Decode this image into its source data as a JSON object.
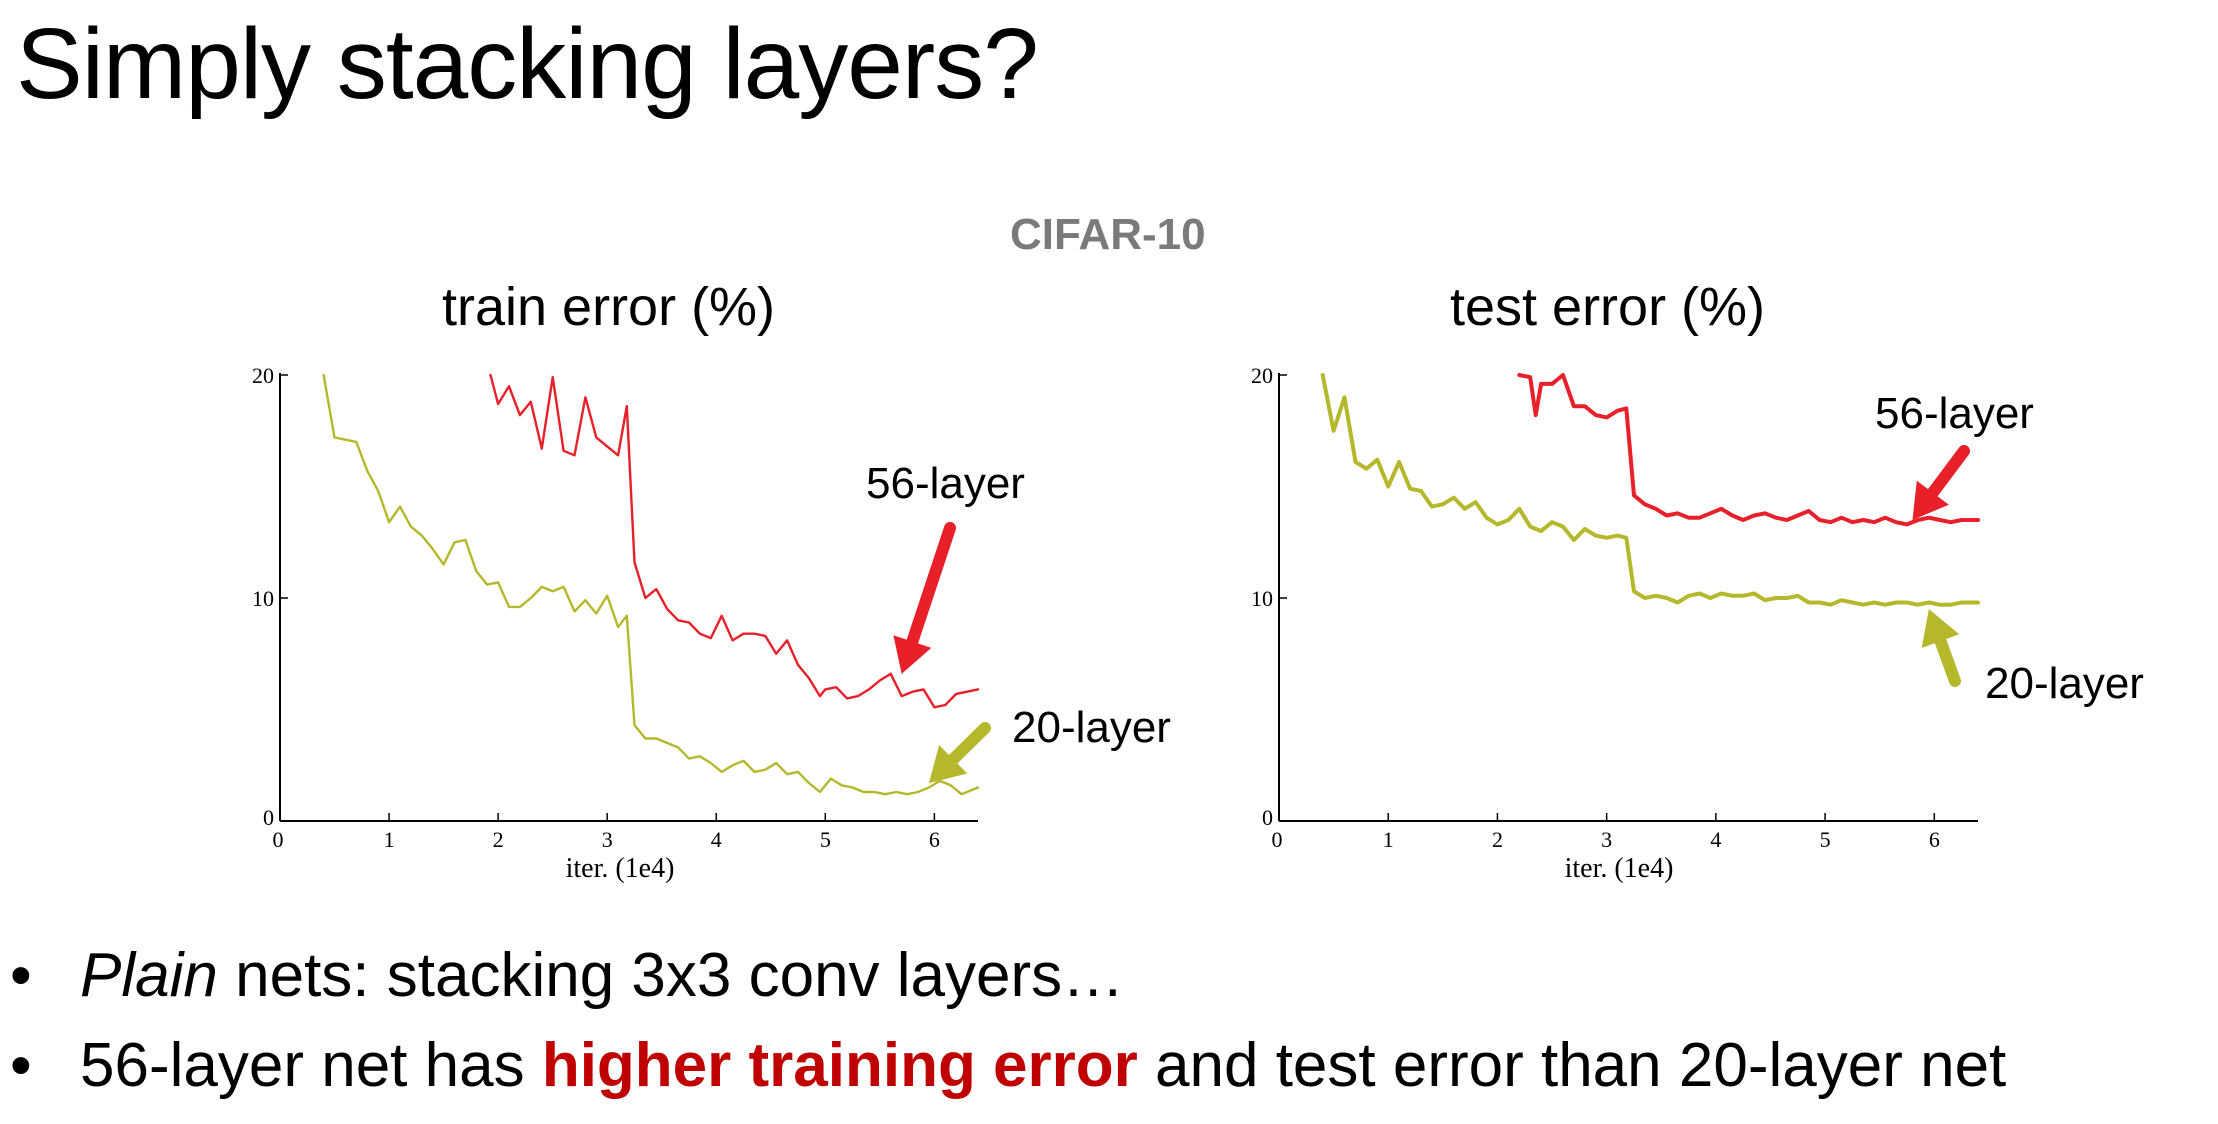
{
  "slide": {
    "title": "Simply stacking layers?",
    "dataset_label": "CIFAR-10",
    "bullet1": {
      "em": "Plain",
      "rest": " nets: stacking 3x3 conv layers…"
    },
    "bullet2": {
      "pre": "56-layer net has ",
      "highlight": "higher training error",
      "post": " and test error than 20-layer net"
    },
    "bullet_symbol": "•",
    "highlight_color": "#c00000"
  },
  "chart_data": [
    {
      "type": "line",
      "title": "train error (%)",
      "xlabel": "iter. (1e4)",
      "ylabel": "",
      "xlim": [
        0,
        6.4
      ],
      "ylim": [
        0,
        20
      ],
      "xticks": [
        "0",
        "1",
        "2",
        "3",
        "4",
        "5",
        "6"
      ],
      "yticks": [
        "0",
        "10",
        "20"
      ],
      "grid": false,
      "series": [
        {
          "name": "56-layer",
          "color": "#e8202a",
          "x": [
            1.93,
            2.0,
            2.1,
            2.2,
            2.3,
            2.4,
            2.5,
            2.6,
            2.7,
            2.8,
            2.9,
            3.0,
            3.1,
            3.18,
            3.25,
            3.35,
            3.45,
            3.55,
            3.65,
            3.75,
            3.85,
            3.95,
            4.05,
            4.15,
            4.25,
            4.35,
            4.45,
            4.55,
            4.65,
            4.75,
            4.85,
            4.95,
            5.0,
            5.1,
            5.2,
            5.3,
            5.4,
            5.5,
            5.6,
            5.7,
            5.8,
            5.9,
            6.0,
            6.1,
            6.2,
            6.3,
            6.4
          ],
          "y": [
            20,
            18.7,
            19.5,
            18.2,
            18.8,
            16.7,
            19.9,
            16.6,
            16.4,
            19.0,
            17.2,
            16.8,
            16.4,
            18.6,
            11.6,
            10.0,
            10.4,
            9.5,
            9.0,
            8.9,
            8.4,
            8.2,
            9.2,
            8.1,
            8.4,
            8.4,
            8.3,
            7.5,
            8.1,
            7.0,
            6.4,
            5.6,
            5.9,
            6.0,
            5.5,
            5.6,
            5.9,
            6.3,
            6.6,
            5.6,
            5.8,
            5.9,
            5.1,
            5.2,
            5.7,
            5.8,
            5.9
          ]
        },
        {
          "name": "20-layer",
          "color": "#b5b82a",
          "x": [
            0.4,
            0.5,
            0.7,
            0.8,
            0.9,
            1.0,
            1.1,
            1.2,
            1.3,
            1.4,
            1.5,
            1.6,
            1.7,
            1.8,
            1.9,
            2.0,
            2.1,
            2.2,
            2.3,
            2.4,
            2.5,
            2.6,
            2.7,
            2.8,
            2.9,
            3.0,
            3.1,
            3.18,
            3.25,
            3.35,
            3.45,
            3.55,
            3.65,
            3.75,
            3.85,
            3.95,
            4.05,
            4.15,
            4.25,
            4.35,
            4.45,
            4.55,
            4.65,
            4.75,
            4.85,
            4.95,
            5.05,
            5.15,
            5.25,
            5.35,
            5.45,
            5.55,
            5.65,
            5.75,
            5.85,
            5.95,
            6.05,
            6.15,
            6.25,
            6.35,
            6.4
          ],
          "y": [
            20,
            17.2,
            17.0,
            15.7,
            14.8,
            13.4,
            14.1,
            13.2,
            12.8,
            12.2,
            11.5,
            12.5,
            12.6,
            11.2,
            10.6,
            10.7,
            9.6,
            9.6,
            10.0,
            10.5,
            10.3,
            10.5,
            9.4,
            9.9,
            9.3,
            10.1,
            8.7,
            9.2,
            4.3,
            3.7,
            3.7,
            3.5,
            3.3,
            2.8,
            2.9,
            2.6,
            2.2,
            2.5,
            2.7,
            2.2,
            2.3,
            2.6,
            2.1,
            2.2,
            1.7,
            1.3,
            1.9,
            1.6,
            1.5,
            1.3,
            1.3,
            1.2,
            1.3,
            1.2,
            1.3,
            1.5,
            1.8,
            1.6,
            1.2,
            1.4,
            1.5
          ]
        }
      ],
      "annotations": [
        {
          "text": "56-layer",
          "color": "#e8202a",
          "target": [
            5.7,
            6.6
          ]
        },
        {
          "text": "20-layer",
          "color": "#b5b82a",
          "target": [
            5.95,
            1.7
          ]
        }
      ]
    },
    {
      "type": "line",
      "title": "test error (%)",
      "xlabel": "iter. (1e4)",
      "ylabel": "",
      "xlim": [
        0,
        6.4
      ],
      "ylim": [
        0,
        20
      ],
      "xticks": [
        "0",
        "1",
        "2",
        "3",
        "4",
        "5",
        "6"
      ],
      "yticks": [
        "0",
        "10",
        "20"
      ],
      "grid": false,
      "series": [
        {
          "name": "56-layer",
          "color": "#e8202a",
          "x": [
            2.2,
            2.3,
            2.35,
            2.4,
            2.5,
            2.6,
            2.7,
            2.8,
            2.9,
            3.0,
            3.1,
            3.18,
            3.25,
            3.35,
            3.45,
            3.55,
            3.65,
            3.75,
            3.85,
            3.95,
            4.05,
            4.15,
            4.25,
            4.35,
            4.45,
            4.55,
            4.65,
            4.75,
            4.85,
            4.95,
            5.05,
            5.15,
            5.25,
            5.35,
            5.45,
            5.55,
            5.65,
            5.75,
            5.85,
            5.95,
            6.05,
            6.15,
            6.25,
            6.35,
            6.4
          ],
          "y": [
            20,
            19.9,
            18.2,
            19.6,
            19.6,
            20,
            18.6,
            18.6,
            18.2,
            18.1,
            18.4,
            18.5,
            14.6,
            14.2,
            14.0,
            13.7,
            13.8,
            13.6,
            13.6,
            13.8,
            14.0,
            13.7,
            13.5,
            13.7,
            13.8,
            13.6,
            13.5,
            13.7,
            13.9,
            13.5,
            13.4,
            13.6,
            13.4,
            13.5,
            13.4,
            13.6,
            13.4,
            13.3,
            13.5,
            13.6,
            13.5,
            13.4,
            13.5,
            13.5,
            13.5
          ]
        },
        {
          "name": "20-layer",
          "color": "#b5b82a",
          "x": [
            0.4,
            0.5,
            0.6,
            0.7,
            0.8,
            0.9,
            1.0,
            1.1,
            1.2,
            1.3,
            1.4,
            1.5,
            1.6,
            1.7,
            1.8,
            1.9,
            2.0,
            2.1,
            2.2,
            2.3,
            2.4,
            2.5,
            2.6,
            2.7,
            2.8,
            2.9,
            3.0,
            3.1,
            3.18,
            3.25,
            3.35,
            3.45,
            3.55,
            3.65,
            3.75,
            3.85,
            3.95,
            4.05,
            4.15,
            4.25,
            4.35,
            4.45,
            4.55,
            4.65,
            4.75,
            4.85,
            4.95,
            5.05,
            5.15,
            5.25,
            5.35,
            5.45,
            5.55,
            5.65,
            5.75,
            5.85,
            5.95,
            6.05,
            6.15,
            6.25,
            6.35,
            6.4
          ],
          "y": [
            20,
            17.5,
            19.0,
            16.1,
            15.8,
            16.2,
            15.0,
            16.1,
            14.9,
            14.8,
            14.1,
            14.2,
            14.5,
            14.0,
            14.3,
            13.6,
            13.3,
            13.5,
            14.0,
            13.2,
            13.0,
            13.4,
            13.2,
            12.6,
            13.1,
            12.8,
            12.7,
            12.8,
            12.7,
            10.3,
            10.0,
            10.1,
            10.0,
            9.8,
            10.1,
            10.2,
            10.0,
            10.2,
            10.1,
            10.1,
            10.2,
            9.9,
            10.0,
            10.0,
            10.1,
            9.8,
            9.8,
            9.7,
            9.9,
            9.8,
            9.7,
            9.8,
            9.7,
            9.8,
            9.8,
            9.7,
            9.8,
            9.7,
            9.7,
            9.8,
            9.8,
            9.8
          ]
        }
      ],
      "annotations": [
        {
          "text": "56-layer",
          "color": "#e8202a",
          "target": [
            5.8,
            13.5
          ]
        },
        {
          "text": "20-layer",
          "color": "#b5b82a",
          "target": [
            5.95,
            9.5
          ]
        }
      ]
    }
  ]
}
